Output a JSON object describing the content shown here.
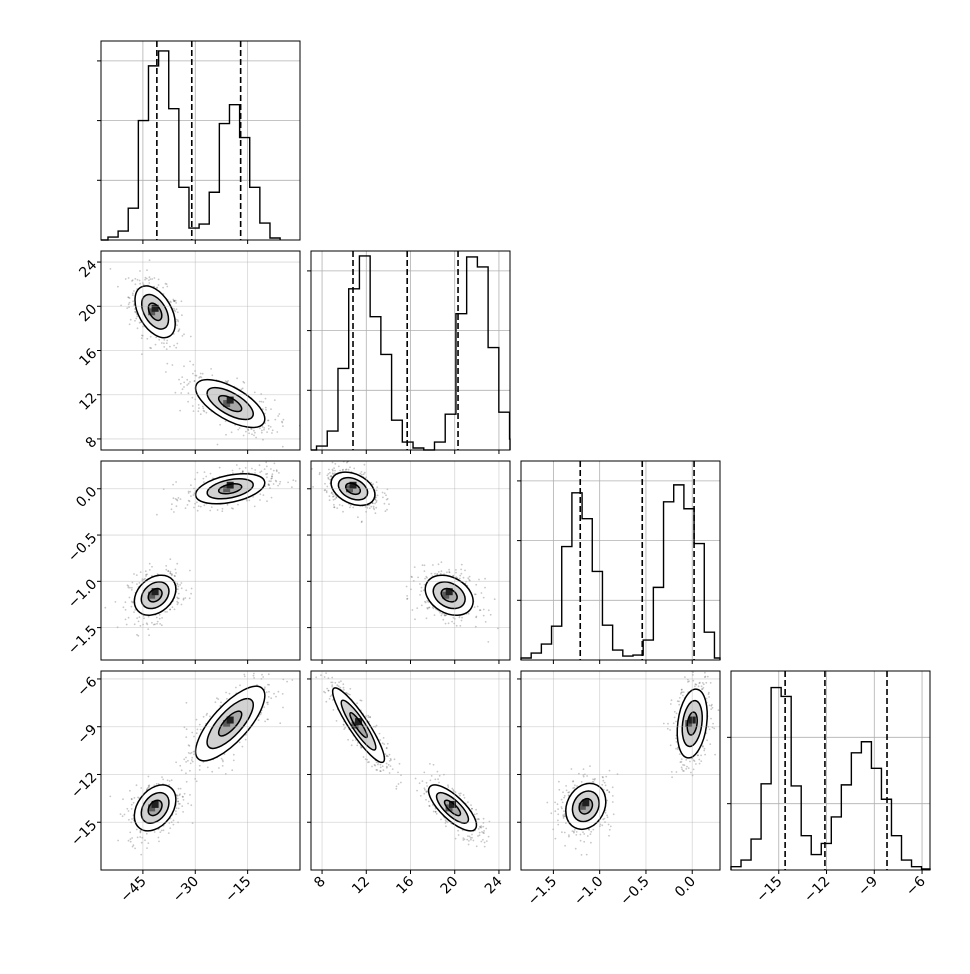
{
  "chart_data": {
    "type": "corner",
    "parameters": 4,
    "grid": true,
    "quantile_lines": [
      [
        -41,
        -31,
        -17
      ],
      [
        10.8,
        15.7,
        20.3
      ],
      [
        -1.21,
        -0.54,
        0.02
      ],
      [
        -14.6,
        -12.1,
        -8.2
      ]
    ],
    "axes": [
      {
        "range": [
          -57,
          0
        ],
        "ticks": [
          -45,
          -30,
          -15
        ],
        "tick_labels": [
          "−45",
          "−30",
          "−15"
        ]
      },
      {
        "range": [
          7,
          25
        ],
        "ticks": [
          8,
          12,
          16,
          20,
          24
        ],
        "tick_labels": [
          "8",
          "12",
          "16",
          "20",
          "24"
        ]
      },
      {
        "range": [
          -1.85,
          0.3
        ],
        "ticks": [
          -1.5,
          -1.0,
          -0.5,
          0.0
        ],
        "tick_labels": [
          "−1.5",
          "−1.0",
          "−0.5",
          "0.0"
        ]
      },
      {
        "range": [
          -18,
          -5.5
        ],
        "ticks": [
          -15,
          -12,
          -9,
          -6
        ],
        "tick_labels": [
          "−15",
          "−12",
          "−9",
          "−6"
        ]
      }
    ],
    "histograms": [
      {
        "bin_start": -55,
        "bin_width": 2.9,
        "counts": [
          0.3,
          0.9,
          3.2,
          12.0,
          17.5,
          19.0,
          13.2,
          5.3,
          1.2,
          1.6,
          4.8,
          11.7,
          13.6,
          10.3,
          5.3,
          1.7,
          0.2
        ]
      },
      {
        "bin_start": 7.5,
        "bin_width": 0.97,
        "counts": [
          0.4,
          1.9,
          8.2,
          16.2,
          19.5,
          13.4,
          9.6,
          3.0,
          0.8,
          0.2,
          0.0,
          0.8,
          3.6,
          13.7,
          19.4,
          18.4,
          10.3,
          3.8,
          1.1
        ]
      },
      {
        "bin_start": -1.85,
        "bin_width": 0.11,
        "counts": [
          0.2,
          0.7,
          1.6,
          3.4,
          11.4,
          16.8,
          14.2,
          8.9,
          3.5,
          1.0,
          0.4,
          0.5,
          2.0,
          7.3,
          15.9,
          17.6,
          15.2,
          11.7,
          2.8,
          0.2
        ]
      },
      {
        "bin_start": -18.0,
        "bin_width": 0.63,
        "counts": [
          0.3,
          0.9,
          2.8,
          7.8,
          16.5,
          15.7,
          7.6,
          3.1,
          1.4,
          2.4,
          4.8,
          7.7,
          10.6,
          11.6,
          9.2,
          6.4,
          3.1,
          0.9,
          0.3,
          0.1
        ]
      }
    ],
    "joint_clusters": [
      {
        "row": 1,
        "col": 0,
        "clusters": [
          {
            "mean": [
              -41.5,
              19.5
            ],
            "sd": [
              3.2,
              1.3
            ],
            "corr": -0.45
          },
          {
            "mean": [
              -20.0,
              11.2
            ],
            "sd": [
              5.5,
              1.2
            ],
            "corr": -0.65
          }
        ]
      },
      {
        "row": 2,
        "col": 0,
        "clusters": [
          {
            "mean": [
              -41.5,
              -1.15
            ],
            "sd": [
              3.3,
              0.12
            ],
            "corr": 0.3
          },
          {
            "mean": [
              -20.0,
              0.0
            ],
            "sd": [
              5.5,
              0.09
            ],
            "corr": 0.4
          }
        ]
      },
      {
        "row": 3,
        "col": 0,
        "clusters": [
          {
            "mean": [
              -41.5,
              -14.1
            ],
            "sd": [
              3.3,
              0.8
            ],
            "corr": 0.35
          },
          {
            "mean": [
              -20.0,
              -8.8
            ],
            "sd": [
              5.5,
              1.3
            ],
            "corr": 0.75
          }
        ]
      },
      {
        "row": 2,
        "col": 1,
        "clusters": [
          {
            "mean": [
              10.8,
              0.0
            ],
            "sd": [
              1.1,
              0.1
            ],
            "corr": -0.35
          },
          {
            "mean": [
              19.5,
              -1.15
            ],
            "sd": [
              1.2,
              0.12
            ],
            "corr": -0.3
          }
        ]
      },
      {
        "row": 3,
        "col": 1,
        "clusters": [
          {
            "mean": [
              11.3,
              -8.9
            ],
            "sd": [
              1.3,
              1.3
            ],
            "corr": -0.9
          },
          {
            "mean": [
              19.8,
              -14.1
            ],
            "sd": [
              1.2,
              0.8
            ],
            "corr": -0.75
          }
        ]
      },
      {
        "row": 3,
        "col": 2,
        "clusters": [
          {
            "mean": [
              -1.15,
              -14.0
            ],
            "sd": [
              0.12,
              0.8
            ],
            "corr": 0.2
          },
          {
            "mean": [
              0.0,
              -8.8
            ],
            "sd": [
              0.09,
              1.2
            ],
            "corr": 0.25
          }
        ]
      }
    ],
    "contour_levels_sigma": [
      0.6,
      1.2,
      1.8
    ]
  }
}
